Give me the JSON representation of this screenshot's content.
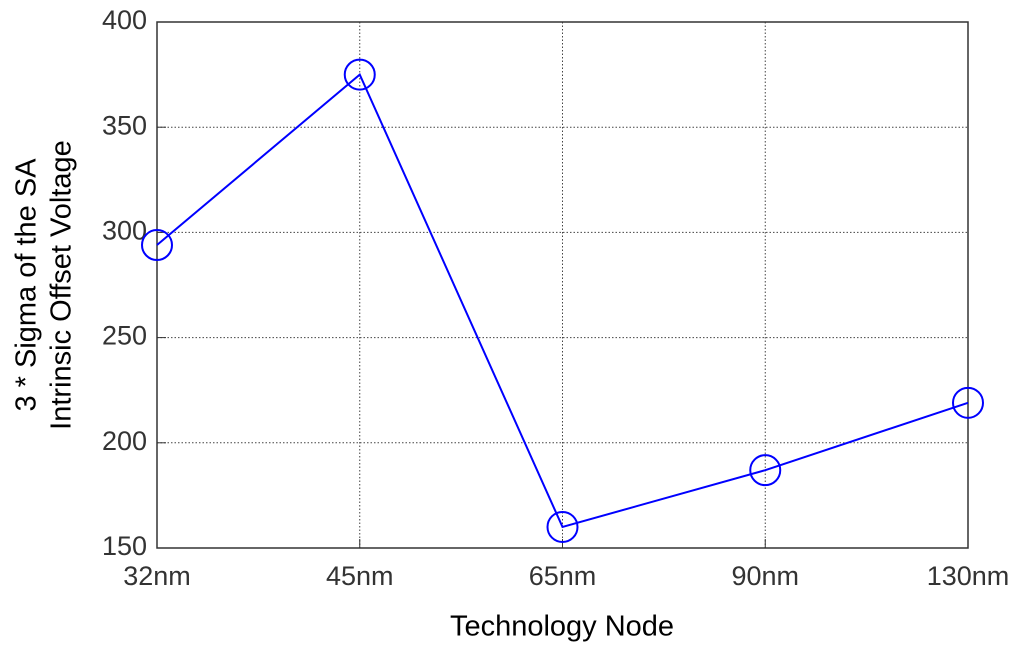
{
  "chart_data": {
    "type": "line",
    "xlabel": "Technology Node",
    "ylabel": [
      "3 * Sigma of the SA",
      "Intrinsic Offset Voltage"
    ],
    "categories": [
      "32nm",
      "45nm",
      "65nm",
      "90nm",
      "130nm"
    ],
    "series": [
      {
        "color": "#0000ff",
        "values": [
          294,
          375,
          160,
          187,
          219
        ]
      }
    ],
    "ylim": [
      150,
      400
    ],
    "yticks": [
      150,
      200,
      250,
      300,
      350,
      400
    ],
    "grid": true,
    "marker": "circle"
  }
}
